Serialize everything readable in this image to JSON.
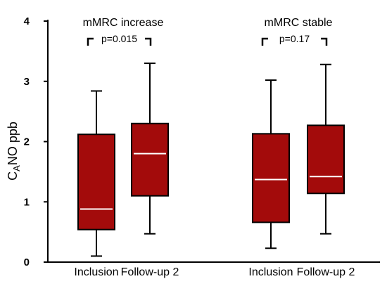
{
  "chart_data": {
    "type": "box",
    "ylabel_main": "C",
    "ylabel_sub": "A",
    "ylabel_rest": "NO ppb",
    "ylim": [
      0,
      4
    ],
    "yticks": [
      "0",
      "1",
      "2",
      "3",
      "4"
    ],
    "box_color": "#a30b0b",
    "median_color": "#ffffff",
    "groups": [
      {
        "label": "mMRC increase",
        "pvalue": "p=0.015",
        "boxes": [
          {
            "category": "Inclusion",
            "min": 0.1,
            "q1": 0.54,
            "median": 0.88,
            "q3": 2.12,
            "max": 2.84
          },
          {
            "category": "Follow-up 2",
            "min": 0.47,
            "q1": 1.1,
            "median": 1.8,
            "q3": 2.3,
            "max": 3.3
          }
        ]
      },
      {
        "label": "mMRC stable",
        "pvalue": "p=0.17",
        "boxes": [
          {
            "category": "Inclusion",
            "min": 0.23,
            "q1": 0.66,
            "median": 1.37,
            "q3": 2.13,
            "max": 3.02
          },
          {
            "category": "Follow-up 2",
            "min": 0.47,
            "q1": 1.14,
            "median": 1.42,
            "q3": 2.27,
            "max": 3.28
          }
        ]
      }
    ]
  }
}
